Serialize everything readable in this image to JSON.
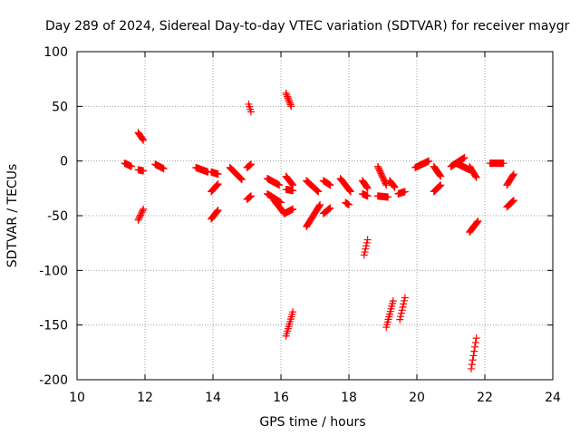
{
  "chart_data": {
    "type": "scatter",
    "title": "Day 289 of 2024, Sidereal Day-to-day VTEC variation (SDTVAR) for receiver maygr",
    "xlabel": "GPS time / hours",
    "ylabel": "SDTVAR / TECUs",
    "xlim": [
      10,
      24
    ],
    "ylim": [
      -200,
      100
    ],
    "x_ticks": [
      10,
      12,
      14,
      16,
      18,
      20,
      22,
      24
    ],
    "y_ticks": [
      100,
      50,
      0,
      -50,
      -100,
      -150,
      -200
    ],
    "grid": true,
    "marker": "plus",
    "color": "#ff0000",
    "segments": [
      {
        "x0": 11.4,
        "y0": -2,
        "x1": 11.6,
        "y1": -5
      },
      {
        "x0": 11.8,
        "y0": 26,
        "x1": 11.95,
        "y1": 19
      },
      {
        "x0": 11.8,
        "y0": -8,
        "x1": 11.95,
        "y1": -9
      },
      {
        "x0": 11.8,
        "y0": -54,
        "x1": 11.95,
        "y1": -44
      },
      {
        "x0": 12.3,
        "y0": -3,
        "x1": 12.55,
        "y1": -7
      },
      {
        "x0": 13.5,
        "y0": -6,
        "x1": 13.85,
        "y1": -10
      },
      {
        "x0": 13.95,
        "y0": -10,
        "x1": 14.15,
        "y1": -12
      },
      {
        "x0": 13.95,
        "y0": -28,
        "x1": 14.15,
        "y1": -21
      },
      {
        "x0": 13.95,
        "y0": -53,
        "x1": 14.15,
        "y1": -45
      },
      {
        "x0": 14.5,
        "y0": -6,
        "x1": 14.85,
        "y1": -17
      },
      {
        "x0": 15.0,
        "y0": -6,
        "x1": 15.12,
        "y1": -3
      },
      {
        "x0": 15.0,
        "y0": -35,
        "x1": 15.12,
        "y1": -32
      },
      {
        "x0": 15.05,
        "y0": 52,
        "x1": 15.12,
        "y1": 45
      },
      {
        "x0": 15.6,
        "y0": -16,
        "x1": 15.95,
        "y1": -22
      },
      {
        "x0": 15.6,
        "y0": -30,
        "x1": 16.0,
        "y1": -38
      },
      {
        "x0": 15.8,
        "y0": -36,
        "x1": 16.1,
        "y1": -48
      },
      {
        "x0": 16.1,
        "y0": -48,
        "x1": 16.35,
        "y1": -44
      },
      {
        "x0": 16.15,
        "y0": 62,
        "x1": 16.3,
        "y1": 50
      },
      {
        "x0": 16.15,
        "y0": -14,
        "x1": 16.35,
        "y1": -22
      },
      {
        "x0": 16.15,
        "y0": -26,
        "x1": 16.35,
        "y1": -27
      },
      {
        "x0": 16.15,
        "y0": -160,
        "x1": 16.35,
        "y1": -138
      },
      {
        "x0": 16.75,
        "y0": -18,
        "x1": 17.1,
        "y1": -28
      },
      {
        "x0": 16.75,
        "y0": -60,
        "x1": 17.15,
        "y1": -40
      },
      {
        "x0": 17.25,
        "y0": -18,
        "x1": 17.45,
        "y1": -22
      },
      {
        "x0": 17.25,
        "y0": -48,
        "x1": 17.45,
        "y1": -43
      },
      {
        "x0": 17.75,
        "y0": -16,
        "x1": 18.05,
        "y1": -28
      },
      {
        "x0": 17.9,
        "y0": -38,
        "x1": 18.0,
        "y1": -40
      },
      {
        "x0": 18.4,
        "y0": -18,
        "x1": 18.55,
        "y1": -25
      },
      {
        "x0": 18.4,
        "y0": -30,
        "x1": 18.55,
        "y1": -32
      },
      {
        "x0": 18.45,
        "y0": -86,
        "x1": 18.55,
        "y1": -72
      },
      {
        "x0": 18.85,
        "y0": -5,
        "x1": 19.1,
        "y1": -22
      },
      {
        "x0": 18.85,
        "y0": -32,
        "x1": 19.15,
        "y1": -33
      },
      {
        "x0": 19.1,
        "y0": -152,
        "x1": 19.3,
        "y1": -128
      },
      {
        "x0": 19.2,
        "y0": -18,
        "x1": 19.35,
        "y1": -24
      },
      {
        "x0": 19.45,
        "y0": -30,
        "x1": 19.65,
        "y1": -28
      },
      {
        "x0": 19.5,
        "y0": -145,
        "x1": 19.65,
        "y1": -125
      },
      {
        "x0": 19.95,
        "y0": -6,
        "x1": 20.35,
        "y1": 0
      },
      {
        "x0": 20.5,
        "y0": -5,
        "x1": 20.7,
        "y1": -14
      },
      {
        "x0": 20.5,
        "y0": -28,
        "x1": 20.7,
        "y1": -22
      },
      {
        "x0": 21.0,
        "y0": -5,
        "x1": 21.4,
        "y1": 3
      },
      {
        "x0": 21.15,
        "y0": -2,
        "x1": 21.55,
        "y1": -8
      },
      {
        "x0": 21.55,
        "y0": -5,
        "x1": 21.75,
        "y1": -15
      },
      {
        "x0": 21.55,
        "y0": -65,
        "x1": 21.8,
        "y1": -55
      },
      {
        "x0": 21.6,
        "y0": -190,
        "x1": 21.75,
        "y1": -162
      },
      {
        "x0": 22.15,
        "y0": -2,
        "x1": 22.55,
        "y1": -2
      },
      {
        "x0": 22.65,
        "y0": -22,
        "x1": 22.85,
        "y1": -12
      },
      {
        "x0": 22.65,
        "y0": -42,
        "x1": 22.85,
        "y1": -36
      }
    ]
  }
}
